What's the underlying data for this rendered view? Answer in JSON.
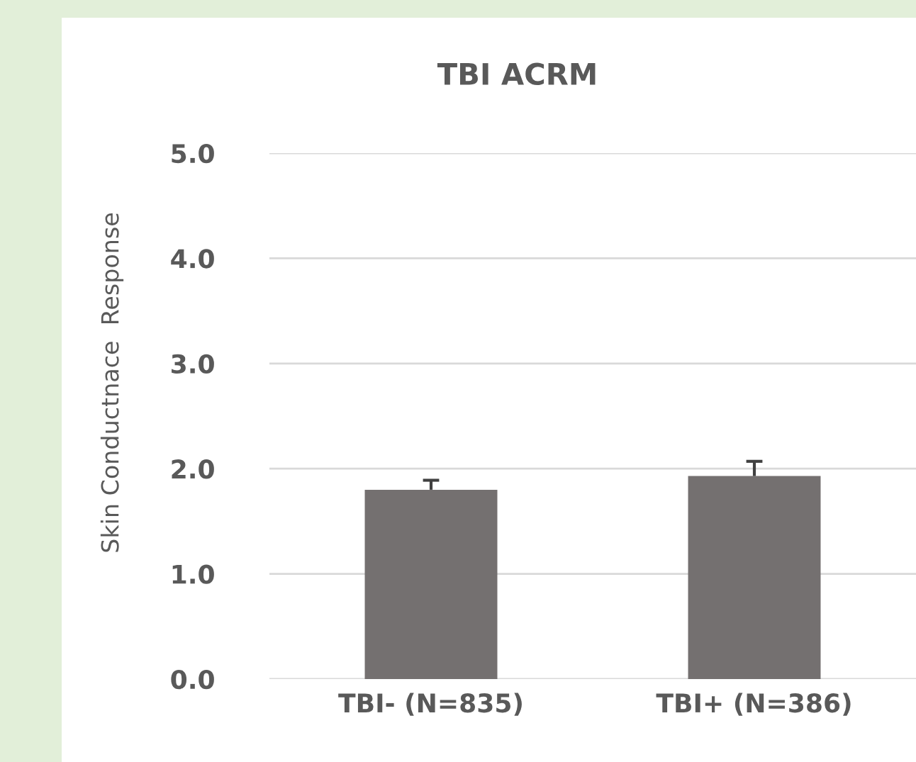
{
  "chart_data": {
    "type": "bar",
    "title": "TBI ACRM",
    "ylabel": "Skin Conductnace  Response",
    "categories": [
      "TBI- (N=835)",
      "TBI+ (N=386)"
    ],
    "values": [
      1.8,
      1.93
    ],
    "errors": [
      [
        1.8,
        1.89
      ],
      [
        1.93,
        2.07
      ]
    ],
    "color": "#747070",
    "ylim": [
      0,
      5
    ],
    "yticks": [
      {
        "value": 0,
        "label": "0.0"
      },
      {
        "value": 1,
        "label": "1.0"
      },
      {
        "value": 2,
        "label": "2.0"
      },
      {
        "value": 3,
        "label": "3.0"
      },
      {
        "value": 4,
        "label": "4.0"
      },
      {
        "value": 5,
        "label": "5.0"
      }
    ],
    "grid": "y"
  }
}
